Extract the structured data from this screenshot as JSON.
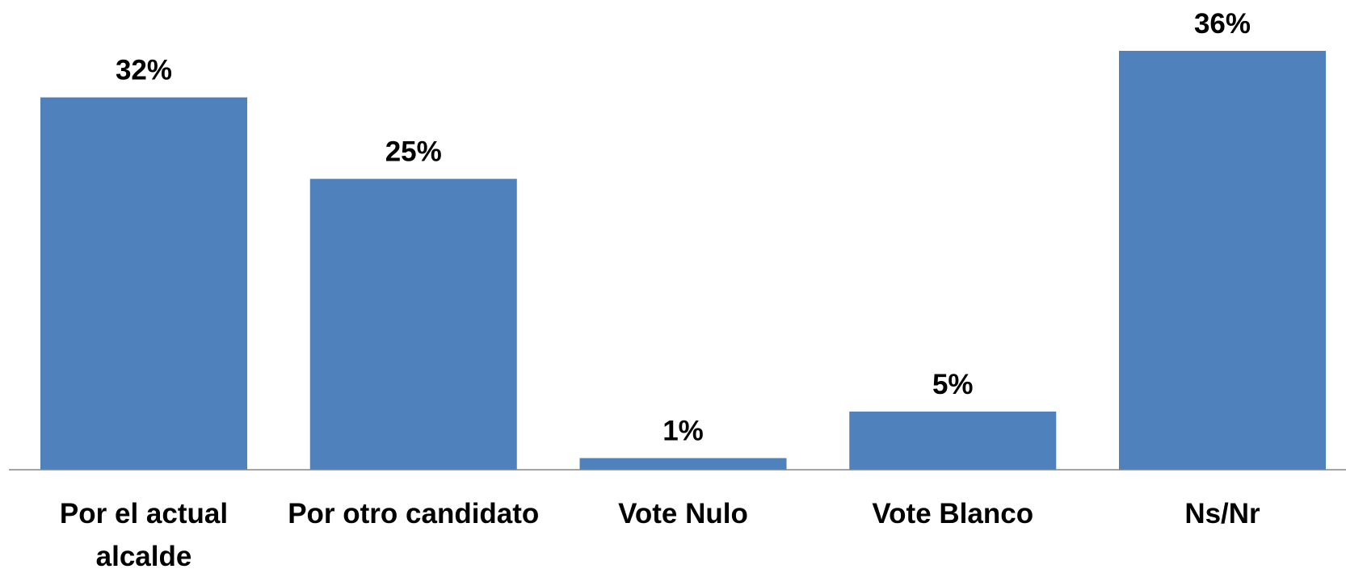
{
  "chart_data": {
    "type": "bar",
    "categories": [
      [
        "Por el actual",
        "alcalde"
      ],
      [
        "Por otro candidato"
      ],
      [
        "Vote Nulo"
      ],
      [
        "Vote Blanco"
      ],
      [
        "Ns/Nr"
      ]
    ],
    "values": [
      32,
      25,
      1,
      5,
      36
    ],
    "data_labels": [
      "32%",
      "25%",
      "1%",
      "5%",
      "36%"
    ],
    "title": "",
    "xlabel": "",
    "ylabel": "",
    "ylim": [
      0,
      36
    ],
    "grid": false,
    "legend": "none",
    "bar_color": "#4f81bd",
    "axis_color": "#868686"
  }
}
